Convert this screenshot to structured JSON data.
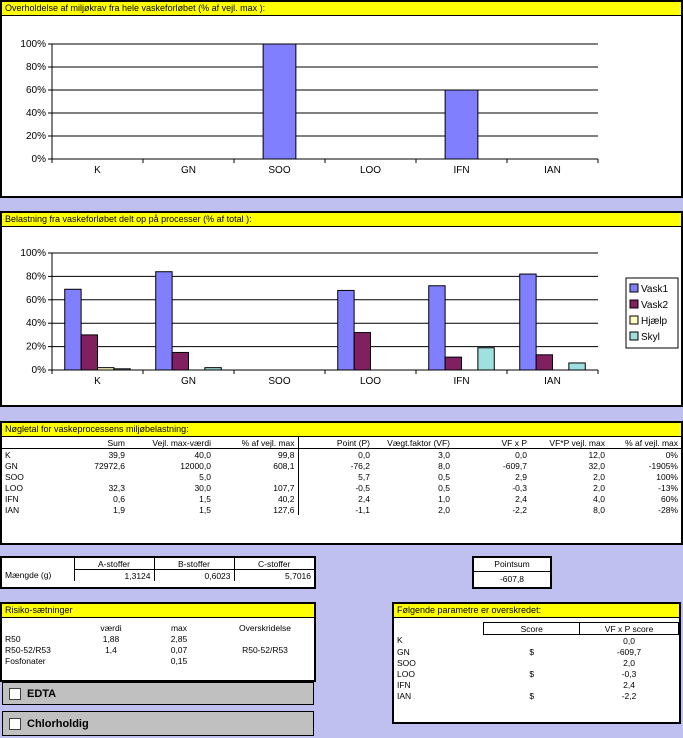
{
  "chart1": {
    "title": "Overholdelse af miljøkrav fra hele vaskeforløbet (% af vejl. max ):",
    "chart_data": {
      "type": "bar",
      "categories": [
        "K",
        "GN",
        "SOO",
        "LOO",
        "IFN",
        "IAN"
      ],
      "values": [
        0,
        0,
        100,
        0,
        60,
        0
      ],
      "ylim": [
        0,
        100
      ],
      "yticks": [
        "0%",
        "20%",
        "40%",
        "60%",
        "80%",
        "100%"
      ],
      "color": "#8080FF"
    }
  },
  "chart2": {
    "title": "Belastning fra vaskeforløbet delt op på processer (% af total ):",
    "chart_data": {
      "type": "bar",
      "categories": [
        "K",
        "GN",
        "SOO",
        "LOO",
        "IFN",
        "IAN"
      ],
      "ylim": [
        0,
        100
      ],
      "yticks": [
        "0%",
        "20%",
        "40%",
        "60%",
        "80%",
        "100%"
      ],
      "legend": "right",
      "series": [
        {
          "name": "Vask1",
          "color": "#8080FF",
          "values": [
            69,
            84,
            0,
            68,
            72,
            82
          ]
        },
        {
          "name": "Vask2",
          "color": "#802060",
          "values": [
            30,
            15,
            0,
            32,
            11,
            13
          ]
        },
        {
          "name": "Hjælp",
          "color": "#FFFFC0",
          "values": [
            2,
            0,
            0,
            0,
            0,
            0
          ]
        },
        {
          "name": "Skyl",
          "color": "#A0E0E0",
          "values": [
            1,
            2,
            0,
            0,
            19,
            6
          ]
        }
      ]
    }
  },
  "keys": {
    "title": "Nøgletal for vaskeprocessens miljøbelastning:",
    "headers": [
      "",
      "Sum",
      "Vejl. max-værdi",
      "% af vejl. max",
      "Point (P)",
      "Vægt.faktor (VF)",
      "VF x P",
      "VF*P vejl. max",
      "% af vejl. max"
    ],
    "rows": [
      [
        "K",
        "39,9",
        "40,0",
        "99,8",
        "0,0",
        "3,0",
        "0,0",
        "12,0",
        "0%"
      ],
      [
        "GN",
        "72972,6",
        "12000,0",
        "608,1",
        "-76,2",
        "8,0",
        "-609,7",
        "32,0",
        "-1905%"
      ],
      [
        "SOO",
        "",
        "5,0",
        "",
        "5,7",
        "0,5",
        "2,9",
        "2,0",
        "100%"
      ],
      [
        "LOO",
        "32,3",
        "30,0",
        "107,7",
        "-0,5",
        "0,5",
        "-0,3",
        "2,0",
        "-13%"
      ],
      [
        "IFN",
        "0,6",
        "1,5",
        "40,2",
        "2,4",
        "1,0",
        "2,4",
        "4,0",
        "60%"
      ],
      [
        "IAN",
        "1,9",
        "1,5",
        "127,6",
        "-1,1",
        "2,0",
        "-2,2",
        "8,0",
        "-28%"
      ]
    ]
  },
  "stoffer": {
    "headers": [
      "",
      "A-stoffer",
      "B-stoffer",
      "C-stoffer"
    ],
    "row_label": "Mængde (g)",
    "values": [
      "1,3124",
      "0,6023",
      "5,7016"
    ]
  },
  "pointsum": {
    "label": "Pointsum",
    "value": "-607,8"
  },
  "risiko": {
    "title": "Risiko-sætninger",
    "headers": [
      "",
      "værdi",
      "max",
      "Overskridelse"
    ],
    "rows": [
      [
        "R50",
        "1,88",
        "2,85",
        ""
      ],
      [
        "R50-52/R53",
        "1,4",
        "0,07",
        "R50-52/R53"
      ],
      [
        "Fosfonater",
        "",
        "0,15",
        ""
      ]
    ]
  },
  "checks": {
    "edta": "EDTA",
    "chlor": "Chlorholdig"
  },
  "params": {
    "title": "Følgende parametre er overskredet:",
    "headers": [
      "",
      "Score",
      "VF x P score"
    ],
    "rows": [
      [
        "K",
        "",
        "0,0"
      ],
      [
        "GN",
        "$",
        "-609,7"
      ],
      [
        "SOO",
        "",
        "2,0"
      ],
      [
        "LOO",
        "$",
        "-0,3"
      ],
      [
        "IFN",
        "",
        "2,4"
      ],
      [
        "IAN",
        "$",
        "-2,2"
      ]
    ]
  }
}
